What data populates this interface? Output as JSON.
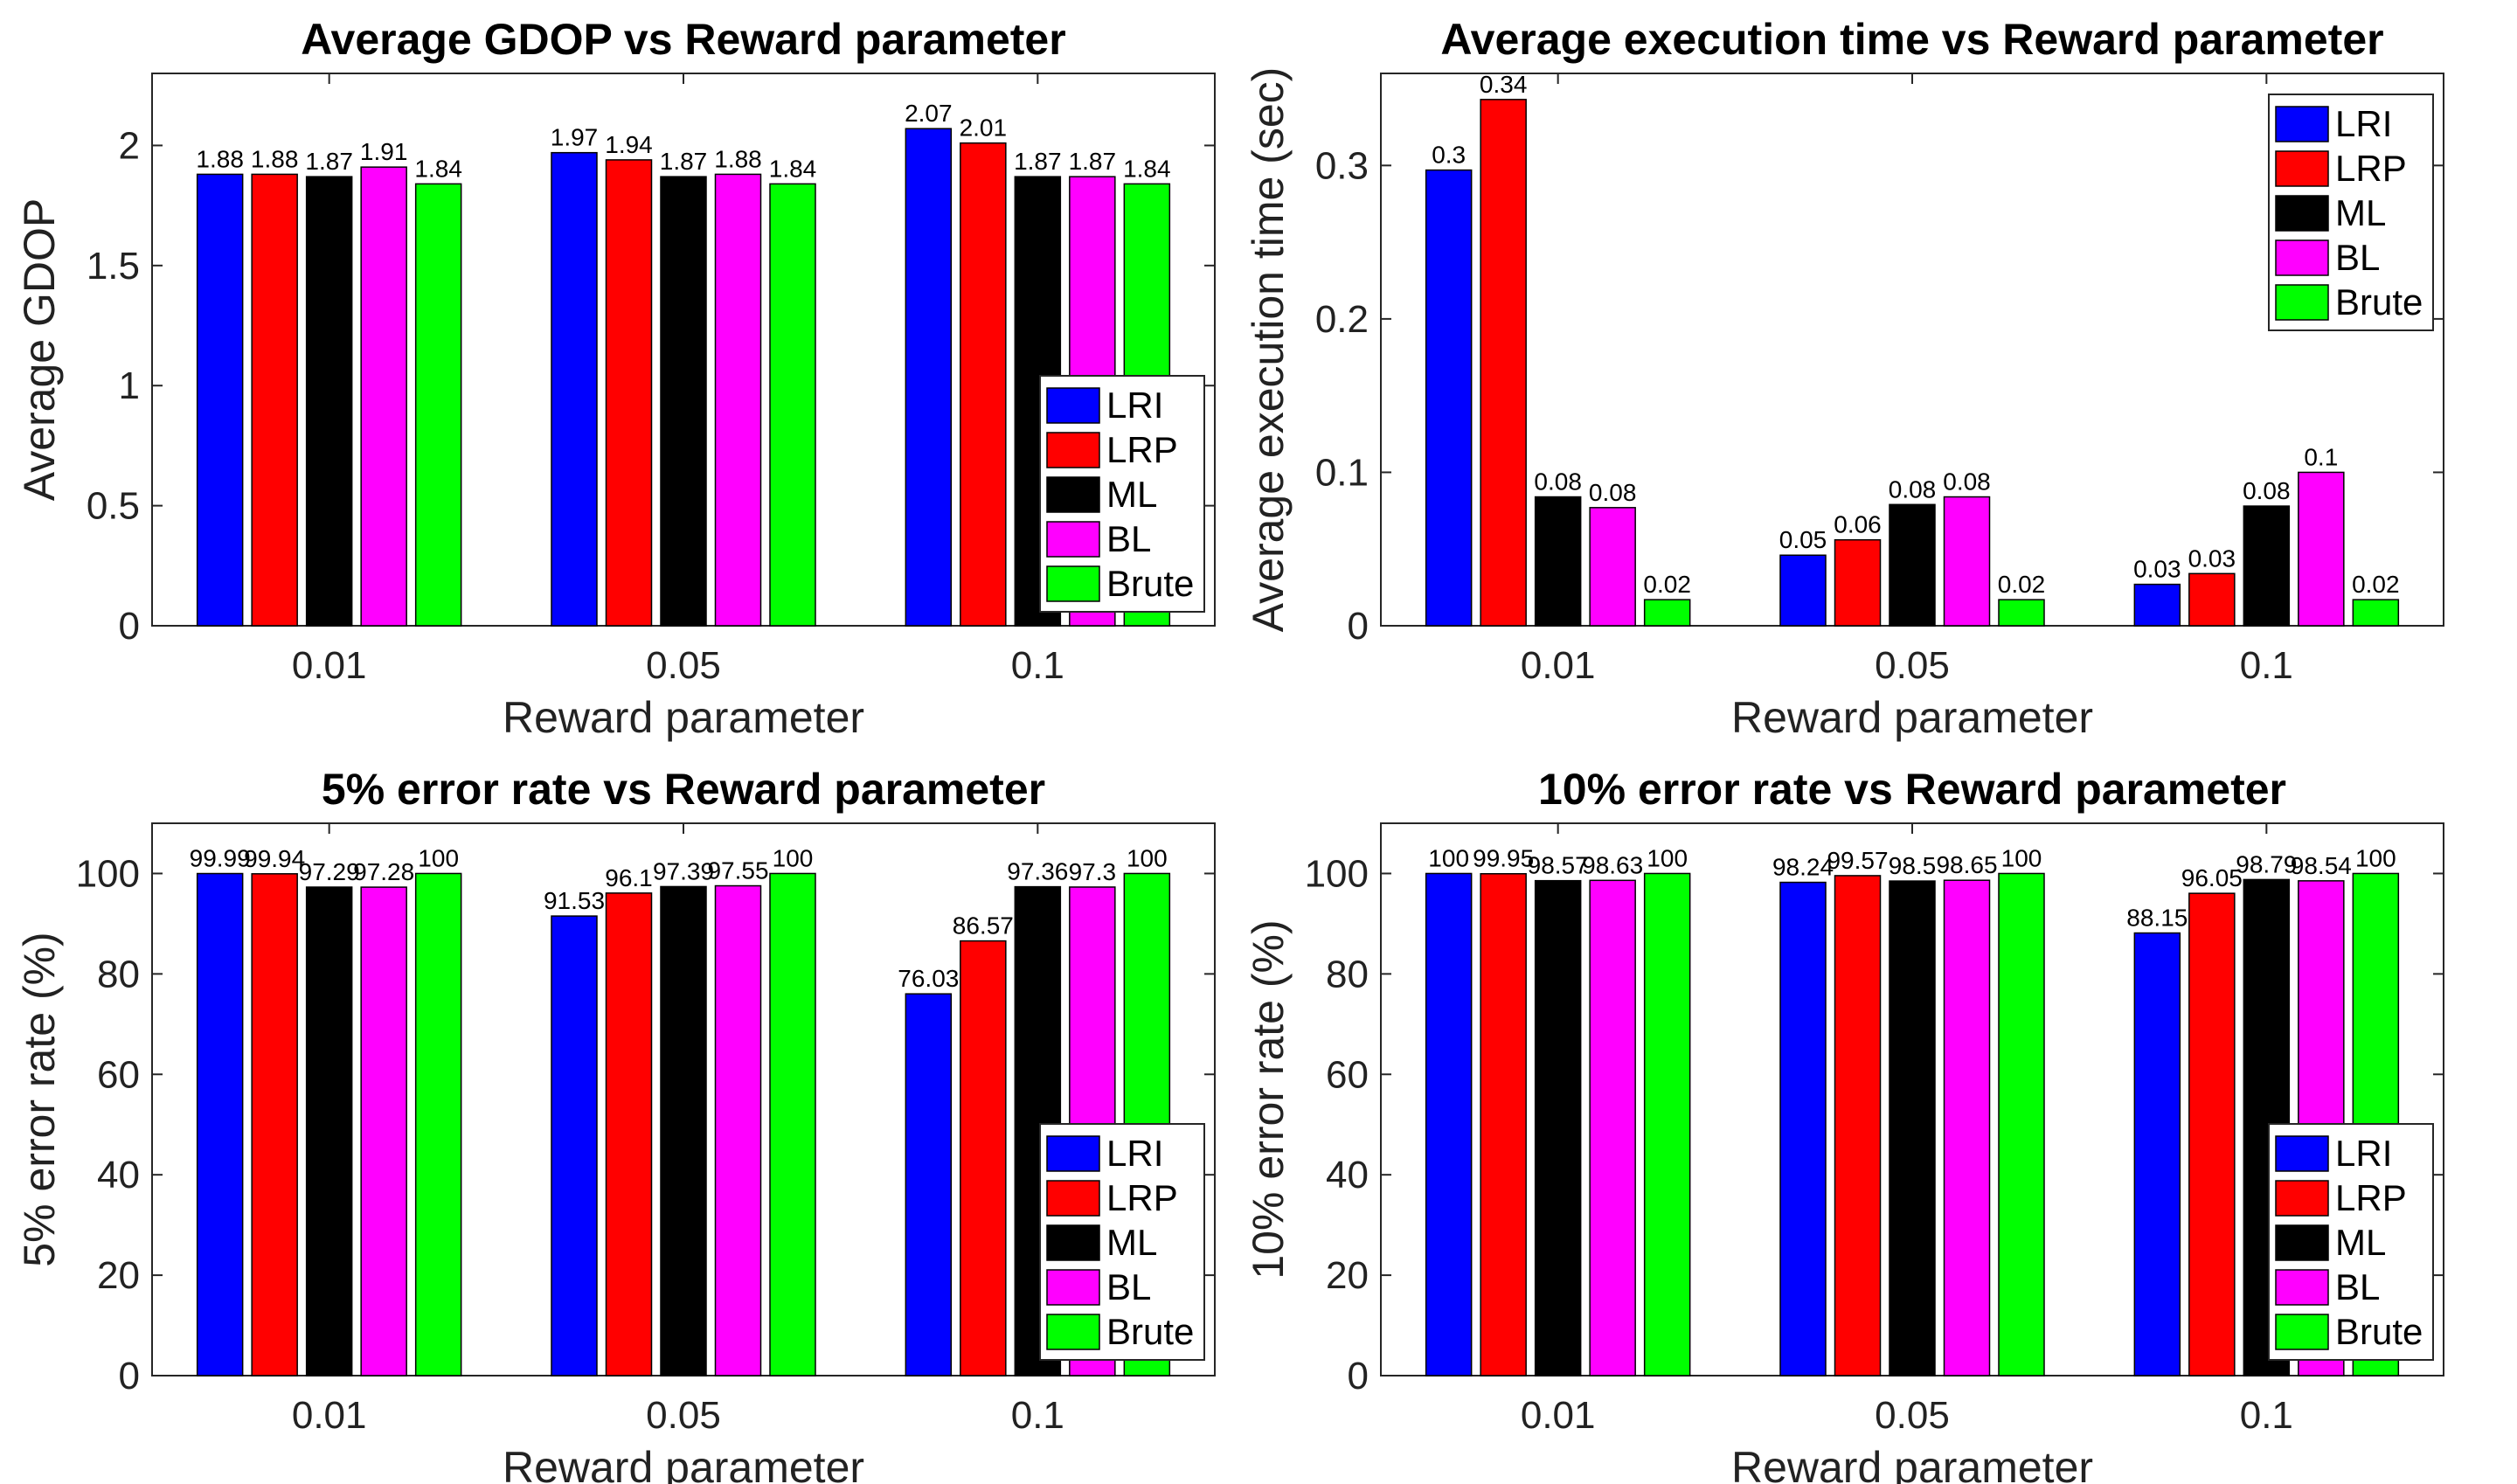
{
  "chart_data": [
    {
      "type": "bar",
      "title": "Average GDOP vs Reward parameter",
      "xlabel": "Reward parameter",
      "ylabel": "Average GDOP",
      "categories": [
        "0.01",
        "0.05",
        "0.1"
      ],
      "ylim": [
        0,
        2.3
      ],
      "yticks": [
        0,
        0.5,
        1,
        1.5,
        2
      ],
      "ytick_labels": [
        "0",
        "0.5",
        "1",
        "1.5",
        "2"
      ],
      "legend_position": "bottom-right",
      "series": [
        {
          "name": "LRI",
          "color": "#0000ff",
          "values": [
            1.88,
            1.97,
            2.07
          ],
          "labels": [
            "1.88",
            "1.97",
            "2.07"
          ]
        },
        {
          "name": "LRP",
          "color": "#ff0000",
          "values": [
            1.88,
            1.94,
            2.01
          ],
          "labels": [
            "1.88",
            "1.94",
            "2.01"
          ]
        },
        {
          "name": "ML",
          "color": "#000000",
          "values": [
            1.87,
            1.87,
            1.87
          ],
          "labels": [
            "1.87",
            "1.87",
            "1.87"
          ]
        },
        {
          "name": "BL",
          "color": "#ff00ff",
          "values": [
            1.91,
            1.88,
            1.87
          ],
          "labels": [
            "1.91",
            "1.88",
            "1.87"
          ]
        },
        {
          "name": "Brute",
          "color": "#00ff00",
          "values": [
            1.84,
            1.84,
            1.84
          ],
          "labels": [
            "1.84",
            "1.84",
            "1.84"
          ]
        }
      ]
    },
    {
      "type": "bar",
      "title": "Average execution time vs Reward parameter",
      "xlabel": "Reward parameter",
      "ylabel": "Average execution time (sec)",
      "categories": [
        "0.01",
        "0.05",
        "0.1"
      ],
      "ylim": [
        0,
        0.36
      ],
      "yticks": [
        0,
        0.1,
        0.2,
        0.3
      ],
      "ytick_labels": [
        "0",
        "0.1",
        "0.2",
        "0.3"
      ],
      "legend_position": "top-right",
      "series": [
        {
          "name": "LRI",
          "color": "#0000ff",
          "values": [
            0.297,
            0.046,
            0.027
          ],
          "labels": [
            "0.3",
            "0.05",
            "0.03"
          ]
        },
        {
          "name": "LRP",
          "color": "#ff0000",
          "values": [
            0.343,
            0.056,
            0.034
          ],
          "labels": [
            "0.34",
            "0.06",
            "0.03"
          ]
        },
        {
          "name": "ML",
          "color": "#000000",
          "values": [
            0.084,
            0.079,
            0.078
          ],
          "labels": [
            "0.08",
            "0.08",
            "0.08"
          ]
        },
        {
          "name": "BL",
          "color": "#ff00ff",
          "values": [
            0.077,
            0.084,
            0.1
          ],
          "labels": [
            "0.08",
            "0.08",
            "0.1"
          ]
        },
        {
          "name": "Brute",
          "color": "#00ff00",
          "values": [
            0.017,
            0.017,
            0.017
          ],
          "labels": [
            "0.02",
            "0.02",
            "0.02"
          ]
        }
      ]
    },
    {
      "type": "bar",
      "title": "5% error rate vs Reward parameter",
      "xlabel": "Reward parameter",
      "ylabel": "5% error rate (%)",
      "categories": [
        "0.01",
        "0.05",
        "0.1"
      ],
      "ylim": [
        0,
        110
      ],
      "yticks": [
        0,
        20,
        40,
        60,
        80,
        100
      ],
      "ytick_labels": [
        "0",
        "20",
        "40",
        "60",
        "80",
        "100"
      ],
      "legend_position": "bottom-right",
      "series": [
        {
          "name": "LRI",
          "color": "#0000ff",
          "values": [
            99.99,
            91.53,
            76.03
          ],
          "labels": [
            "99.99",
            "91.53",
            "76.03"
          ]
        },
        {
          "name": "LRP",
          "color": "#ff0000",
          "values": [
            99.94,
            96.1,
            86.57
          ],
          "labels": [
            "99.94",
            "96.1",
            "86.57"
          ]
        },
        {
          "name": "ML",
          "color": "#000000",
          "values": [
            97.29,
            97.39,
            97.36
          ],
          "labels": [
            "97.29",
            "97.39",
            "97.36"
          ]
        },
        {
          "name": "BL",
          "color": "#ff00ff",
          "values": [
            97.28,
            97.55,
            97.3
          ],
          "labels": [
            "97.28",
            "97.55",
            "97.3"
          ]
        },
        {
          "name": "Brute",
          "color": "#00ff00",
          "values": [
            100,
            100,
            100
          ],
          "labels": [
            "100",
            "100",
            "100"
          ]
        }
      ]
    },
    {
      "type": "bar",
      "title": "10% error rate vs Reward parameter",
      "xlabel": "Reward parameter",
      "ylabel": "10% error rate (%)",
      "categories": [
        "0.01",
        "0.05",
        "0.1"
      ],
      "ylim": [
        0,
        110
      ],
      "yticks": [
        0,
        20,
        40,
        60,
        80,
        100
      ],
      "ytick_labels": [
        "0",
        "20",
        "40",
        "60",
        "80",
        "100"
      ],
      "legend_position": "bottom-right",
      "series": [
        {
          "name": "LRI",
          "color": "#0000ff",
          "values": [
            100,
            98.24,
            88.15
          ],
          "labels": [
            "100",
            "98.24",
            "88.15"
          ]
        },
        {
          "name": "LRP",
          "color": "#ff0000",
          "values": [
            99.95,
            99.57,
            96.05
          ],
          "labels": [
            "99.95",
            "99.57",
            "96.05"
          ]
        },
        {
          "name": "ML",
          "color": "#000000",
          "values": [
            98.57,
            98.5,
            98.79
          ],
          "labels": [
            "98.57",
            "98.5",
            "98.79"
          ]
        },
        {
          "name": "BL",
          "color": "#ff00ff",
          "values": [
            98.63,
            98.65,
            98.54
          ],
          "labels": [
            "98.63",
            "98.65",
            "98.54"
          ]
        },
        {
          "name": "Brute",
          "color": "#00ff00",
          "values": [
            100,
            100,
            100
          ],
          "labels": [
            "100",
            "100",
            "100"
          ]
        }
      ]
    }
  ]
}
